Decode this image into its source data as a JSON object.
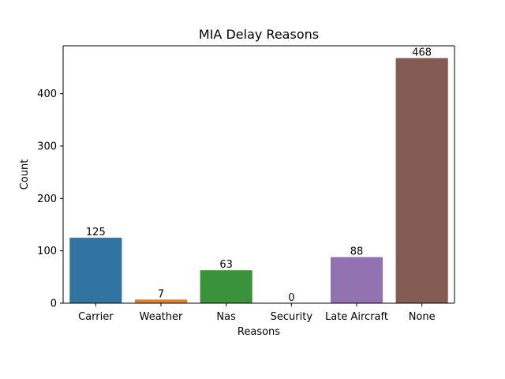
{
  "chart_data": {
    "type": "bar",
    "title": "MIA Delay Reasons",
    "xlabel": "Reasons",
    "ylabel": "Count",
    "categories": [
      "Carrier",
      "Weather",
      "Nas",
      "Security",
      "Late Aircraft",
      "None"
    ],
    "values": [
      125,
      7,
      63,
      0,
      88,
      468
    ],
    "data_labels": [
      "125",
      "7",
      "63",
      "0",
      "88",
      "468"
    ],
    "ylim": [
      0,
      491.4
    ],
    "yticks": [
      0,
      100,
      200,
      300,
      400
    ],
    "ytick_labels": [
      "0",
      "100",
      "200",
      "300",
      "400"
    ],
    "grid": false,
    "colors": [
      "#3274a1",
      "#e1812c",
      "#3a923a",
      "#c03d3e",
      "#9372b2",
      "#845b53"
    ]
  }
}
